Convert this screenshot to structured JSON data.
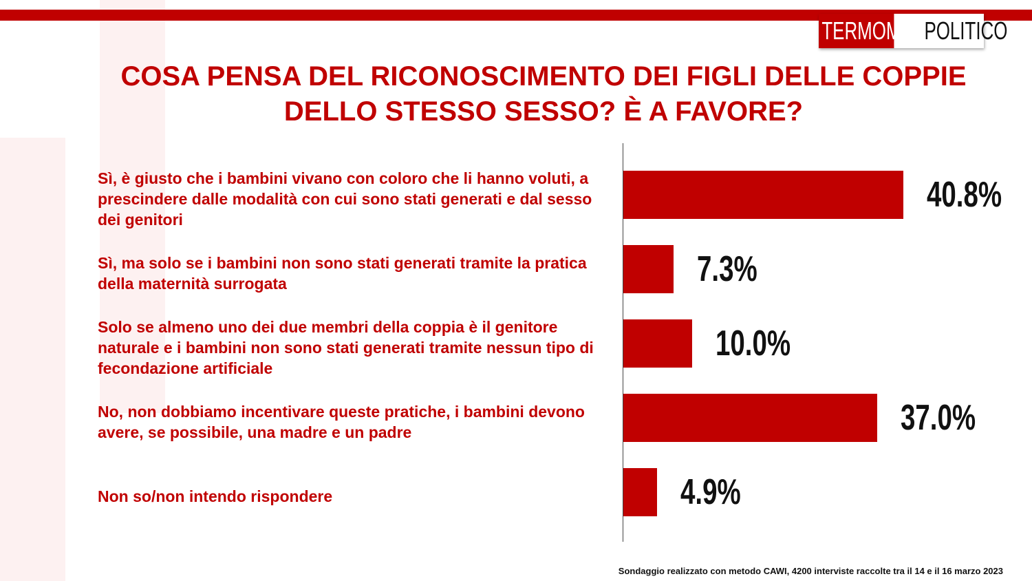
{
  "logo": [
    "TERMOMETRO",
    "POLITICO"
  ],
  "chart_data": {
    "type": "bar",
    "orientation": "horizontal",
    "title": "COSA PENSA DEL RICONOSCIMENTO DEI FIGLI DELLE COPPIE DELLO STESSO SESSO? È A FAVORE?",
    "categories": [
      "Sì, è giusto che i bambini vivano con coloro che li hanno voluti, a prescindere dalle modalità con cui sono stati generati e dal sesso dei genitori",
      "Sì, ma solo se i bambini non sono stati generati tramite la pratica della maternità surrogata",
      "Solo se almeno uno dei due membri della coppia è il genitore naturale e i bambini non sono stati generati tramite nessun tipo di fecondazione artificiale",
      "No, non dobbiamo incentivare queste pratiche, i bambini devono avere, se possibile, una madre e un padre",
      "Non so/non intendo rispondere"
    ],
    "values": [
      40.8,
      7.3,
      10.0,
      37.0,
      4.9
    ],
    "value_labels": [
      "40.8%",
      "7.3%",
      "10.0%",
      "37.0%",
      "4.9%"
    ],
    "color": "#c00000",
    "note": "Sondaggio realizzato con metodo CAWI, 4200 interviste raccolte tra il 14 e il 16 marzo 2023"
  }
}
